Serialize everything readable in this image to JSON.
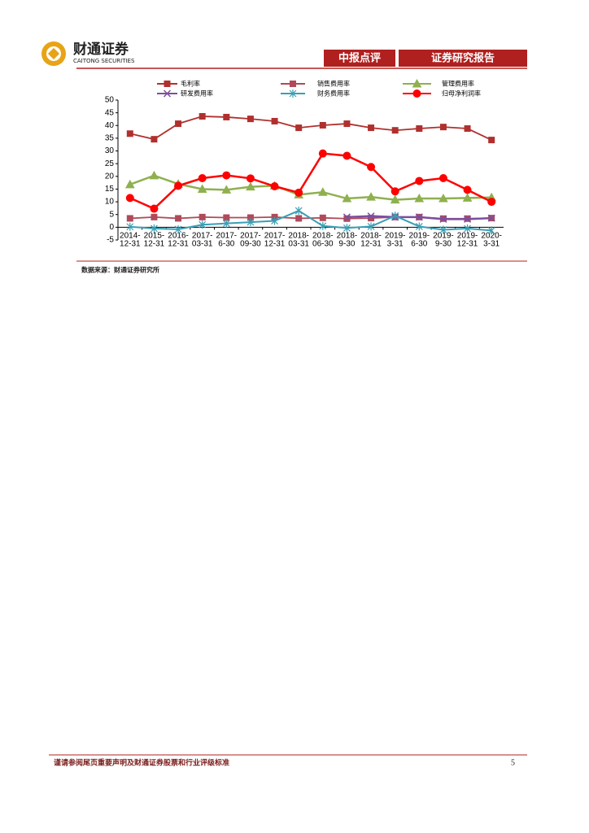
{
  "header": {
    "logo_cn": "财通证券",
    "logo_en": "CAITONG SECURITIES",
    "tag": "中报点评",
    "report_type": "证券研究报告"
  },
  "chart_data": {
    "type": "line",
    "categories": [
      "2014-12-31",
      "2015-12-31",
      "2016-12-31",
      "2017-03-31",
      "2017-6-30",
      "2017-09-30",
      "2017-12-31",
      "2018-03-31",
      "2018-06-30",
      "2018-9-30",
      "2018-12-31",
      "2019-3-31",
      "2019-6-30",
      "2019-9-30",
      "2019-12-31",
      "2020-3-31"
    ],
    "series": [
      {
        "name": "毛利率",
        "color": "#b0302e",
        "marker": "square",
        "values": [
          36.8,
          34.6,
          40.7,
          43.6,
          43.3,
          42.6,
          41.7,
          39.1,
          40.1,
          40.7,
          39.1,
          38.1,
          38.8,
          39.4,
          38.8,
          34.3
        ]
      },
      {
        "name": "销售费用率",
        "color": "#b04a5a",
        "marker": "square",
        "values": [
          3.5,
          4,
          3.5,
          4,
          3.8,
          3.8,
          4,
          3.5,
          3.7,
          3.4,
          3.6,
          4,
          4,
          3.4,
          3.4,
          3.6
        ]
      },
      {
        "name": "管理费用率",
        "color": "#8fb04f",
        "marker": "triangle",
        "values": [
          16.8,
          20.3,
          17,
          15,
          14.7,
          15.9,
          16.3,
          12.8,
          13.8,
          11.3,
          11.9,
          10.8,
          11.3,
          11.3,
          11.5,
          11.7
        ]
      },
      {
        "name": "研发费用率",
        "color": "#7b4f9e",
        "marker": "x",
        "values": [
          null,
          null,
          null,
          null,
          null,
          null,
          null,
          null,
          null,
          4,
          4.4,
          4,
          4,
          3.2,
          3.2,
          3.6
        ]
      },
      {
        "name": "财务费用率",
        "color": "#3a9fb5",
        "marker": "star",
        "values": [
          0.2,
          -0.5,
          -0.8,
          1,
          1.5,
          2,
          2.5,
          6.5,
          0.5,
          -0.3,
          0.3,
          4.5,
          0.3,
          -1,
          -0.5,
          -1.3
        ]
      },
      {
        "name": "归母净利润率",
        "color": "#ff0000",
        "marker": "circle",
        "values": [
          11.5,
          7.3,
          16.3,
          19.3,
          20.4,
          19.2,
          16.1,
          13.6,
          29,
          28.1,
          23.7,
          14.1,
          18.2,
          19.3,
          14.7,
          10
        ]
      }
    ],
    "ylim": [
      -5,
      50
    ],
    "yticks": [
      -5,
      0,
      5,
      10,
      15,
      20,
      25,
      30,
      35,
      40,
      45,
      50
    ],
    "grid": false
  },
  "source": "数据来源：财通证券研究所",
  "footer": {
    "note": "谨请参阅尾页重要声明及财通证券股票和行业评级标准",
    "page": "5"
  }
}
